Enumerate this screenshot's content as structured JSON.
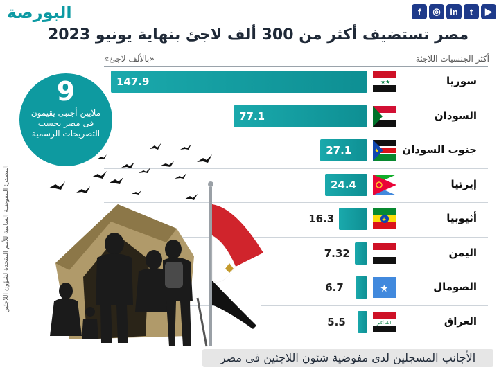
{
  "brand": {
    "logo_text": "البورصة"
  },
  "social": {
    "icons": [
      "facebook-icon",
      "instagram-icon",
      "linkedin-icon",
      "twitter-icon",
      "youtube-icon"
    ],
    "labels": [
      "f",
      "◎",
      "in",
      "t",
      "▶"
    ]
  },
  "header": {
    "title": "مصر تستضيف أكثر من 300 ألف لاجئ بنهاية يونيو 2023"
  },
  "chart_data": {
    "type": "bar",
    "orientation": "horizontal",
    "xlabel": "«بالألف لاجئ»",
    "ylabel": "أكثر الجنسيات اللاجئة",
    "categories": [
      "سوريا",
      "السودان",
      "جنوب السودان",
      "إيرتيا",
      "أثيوبيا",
      "اليمن",
      "الصومال",
      "العراق"
    ],
    "values": [
      147.9,
      77.1,
      27.1,
      24.4,
      16.3,
      7.32,
      6.7,
      5.5
    ],
    "value_labels": [
      "147.9",
      "77.1",
      "27.1",
      "24.4",
      "16.3",
      "7.32",
      "6.7",
      "5.5"
    ],
    "flags": [
      "syria-flag-icon",
      "sudan-flag-icon",
      "south-sudan-flag-icon",
      "eritrea-flag-icon",
      "ethiopia-flag-icon",
      "yemen-flag-icon",
      "somalia-flag-icon",
      "iraq-flag-icon"
    ],
    "bar_color": "#0e9aa0"
  },
  "highlight": {
    "number": "9",
    "text": "ملايين أجنبى يقيمون فى مصر بحسب التصريحات الرسمية"
  },
  "source": "المصدر: المفوضية السامية للأمم المتحدة لشؤون اللاجئين",
  "footer": "الأجانب المسجلين لدى مفوضية شئون اللاجئين فى مصر",
  "colors": {
    "accent": "#0e9aa0",
    "title": "#1f2937"
  }
}
